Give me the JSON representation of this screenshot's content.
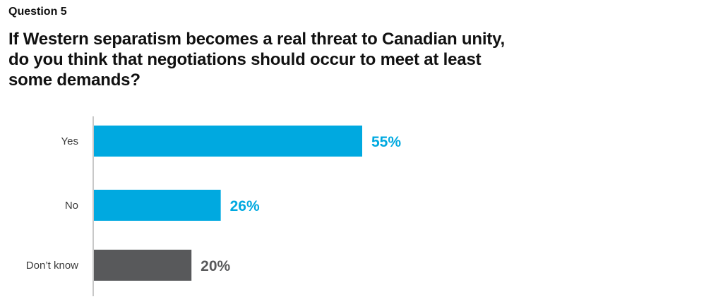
{
  "header": {
    "question_label": "Question 5",
    "title": "If Western separatism becomes a real threat to Canadian unity, do you think that negotiations should occur to meet at least some demands?"
  },
  "colors": {
    "primary_bar": "#00A9E0",
    "secondary_bar": "#58595B",
    "axis": "#c8c8c8"
  },
  "chart_data": {
    "type": "bar",
    "orientation": "horizontal",
    "categories": [
      "Yes",
      "No",
      "Don’t know"
    ],
    "values": [
      55,
      26,
      20
    ],
    "value_labels": [
      "55%",
      "26%",
      "20%"
    ],
    "bar_colors": [
      "#00A9E0",
      "#00A9E0",
      "#58595B"
    ],
    "unit": "%",
    "xlim": [
      0,
      100
    ],
    "grid": false,
    "legend": "none"
  }
}
